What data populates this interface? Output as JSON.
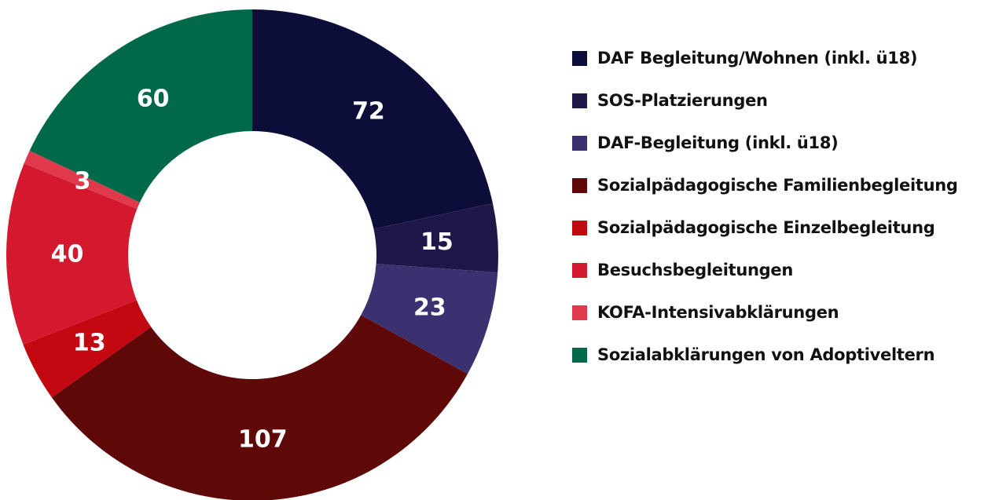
{
  "chart_data": {
    "type": "pie",
    "title": "",
    "donut": true,
    "legend_position": "right",
    "series": [
      {
        "name": "DAF Begleitung/Wohnen (inkl. ü18)",
        "value": 72,
        "label": "72",
        "color": "#0d0d3a"
      },
      {
        "name": "SOS-Platzierungen",
        "value": 15,
        "label": "15",
        "color": "#1e1748"
      },
      {
        "name": "DAF-Begleitung (inkl. ü18)",
        "value": 23,
        "label": "23",
        "color": "#3b3070"
      },
      {
        "name": "Sozialpädagogische Familienbegleitung",
        "value": 107,
        "label": "107",
        "color": "#5e0808"
      },
      {
        "name": "Sozialpädagogische Einzelbegleitung",
        "value": 13,
        "label": "13",
        "color": "#c40811"
      },
      {
        "name": "Besuchsbegleitungen",
        "value": 40,
        "label": "40",
        "color": "#d4182d"
      },
      {
        "name": "KOFA-Intensivabklärungen",
        "value": 3,
        "label": "3",
        "color": "#e0394c"
      },
      {
        "name": "Sozialabklärungen von Adoptiveltern",
        "value": 60,
        "label": "60",
        "color": "#00694a"
      }
    ]
  }
}
